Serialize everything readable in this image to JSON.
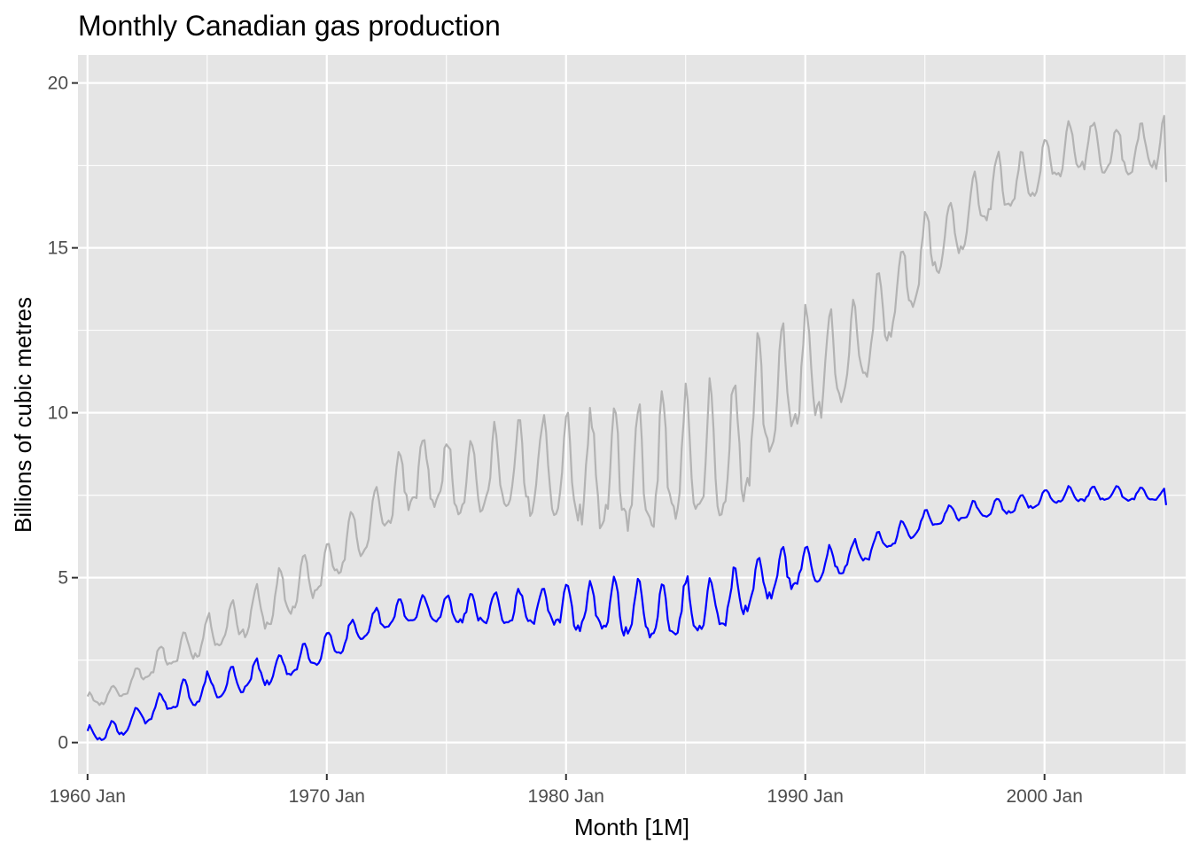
{
  "chart_data": {
    "type": "line",
    "title": "Monthly Canadian gas production",
    "xlabel": "Month [1M]",
    "ylabel": "Billions of cubic metres",
    "xlim": [
      1959.6,
      2005.9
    ],
    "ylim": [
      -0.95,
      20.85
    ],
    "x_major_ticks": [
      1960,
      1970,
      1980,
      1990,
      2000
    ],
    "x_tick_labels": [
      "1960 Jan",
      "1970 Jan",
      "1980 Jan",
      "1990 Jan",
      "2000 Jan"
    ],
    "x_minor_ticks": [
      1965,
      1975,
      1985,
      1995,
      2005
    ],
    "y_major_ticks": [
      0,
      5,
      10,
      15,
      20
    ],
    "y_tick_labels": [
      "0",
      "5",
      "10",
      "15",
      "20"
    ],
    "y_minor_ticks": [
      2.5,
      7.5,
      12.5,
      17.5
    ],
    "grid": true,
    "legend": "none",
    "x_start": "1960 Jan",
    "x_end": "2005 Feb",
    "series": [
      {
        "color": "#b3b3b3",
        "pattern": "seasonal",
        "trend_knots": [
          [
            1960.0,
            1.3
          ],
          [
            1961.0,
            1.4
          ],
          [
            1962.0,
            1.9
          ],
          [
            1963.0,
            2.5
          ],
          [
            1964.0,
            2.8
          ],
          [
            1965.0,
            3.2
          ],
          [
            1966.0,
            3.6
          ],
          [
            1967.0,
            3.9
          ],
          [
            1968.0,
            4.3
          ],
          [
            1969.0,
            4.8
          ],
          [
            1970.0,
            5.3
          ],
          [
            1971.0,
            6.1
          ],
          [
            1972.0,
            6.7
          ],
          [
            1973.0,
            7.7
          ],
          [
            1974.0,
            8.1
          ],
          [
            1975.0,
            8.0
          ],
          [
            1976.0,
            7.9
          ],
          [
            1977.0,
            8.1
          ],
          [
            1978.0,
            8.1
          ],
          [
            1979.0,
            8.2
          ],
          [
            1980.0,
            8.1
          ],
          [
            1981.0,
            8.0
          ],
          [
            1982.0,
            8.0
          ],
          [
            1983.0,
            7.9
          ],
          [
            1984.0,
            8.1
          ],
          [
            1985.0,
            8.4
          ],
          [
            1986.0,
            8.4
          ],
          [
            1987.0,
            8.6
          ],
          [
            1988.0,
            9.9
          ],
          [
            1989.0,
            10.6
          ],
          [
            1990.0,
            11.1
          ],
          [
            1991.0,
            11.2
          ],
          [
            1992.0,
            11.7
          ],
          [
            1993.0,
            12.7
          ],
          [
            1994.0,
            13.6
          ],
          [
            1995.0,
            14.9
          ],
          [
            1996.0,
            15.3
          ],
          [
            1997.0,
            16.2
          ],
          [
            1998.0,
            16.8
          ],
          [
            1999.0,
            16.9
          ],
          [
            2000.0,
            17.4
          ],
          [
            2001.0,
            18.0
          ],
          [
            2002.0,
            18.0
          ],
          [
            2003.0,
            17.8
          ],
          [
            2004.0,
            17.9
          ],
          [
            2005.0,
            18.1
          ],
          [
            2005.1,
            18.2
          ]
        ],
        "amp_knots": [
          [
            1960.0,
            0.2
          ],
          [
            1962.0,
            0.3
          ],
          [
            1965.0,
            0.5
          ],
          [
            1968.0,
            0.7
          ],
          [
            1970.0,
            0.7
          ],
          [
            1973.0,
            0.9
          ],
          [
            1976.0,
            1.1
          ],
          [
            1979.0,
            1.4
          ],
          [
            1982.0,
            1.7
          ],
          [
            1985.0,
            2.0
          ],
          [
            1987.0,
            2.0
          ],
          [
            1989.0,
            1.7
          ],
          [
            1991.0,
            1.4
          ],
          [
            1994.0,
            1.1
          ],
          [
            1997.0,
            0.9
          ],
          [
            2000.0,
            0.7
          ],
          [
            2005.1,
            0.7
          ]
        ],
        "endpoints": [
          [
            1960.0,
            1.4
          ],
          [
            2005.08,
            17.0
          ]
        ],
        "seed": 11
      },
      {
        "color": "#0000ff",
        "pattern": "seasonal",
        "trend_knots": [
          [
            1960.0,
            0.25
          ],
          [
            1961.0,
            0.3
          ],
          [
            1962.0,
            0.7
          ],
          [
            1963.0,
            1.1
          ],
          [
            1964.0,
            1.4
          ],
          [
            1965.0,
            1.6
          ],
          [
            1966.0,
            1.8
          ],
          [
            1967.0,
            2.0
          ],
          [
            1968.0,
            2.2
          ],
          [
            1969.0,
            2.5
          ],
          [
            1970.0,
            2.9
          ],
          [
            1971.0,
            3.2
          ],
          [
            1972.0,
            3.6
          ],
          [
            1973.0,
            3.9
          ],
          [
            1974.0,
            4.0
          ],
          [
            1975.0,
            4.0
          ],
          [
            1976.0,
            4.0
          ],
          [
            1977.0,
            4.0
          ],
          [
            1978.0,
            4.0
          ],
          [
            1979.0,
            4.1
          ],
          [
            1980.0,
            4.0
          ],
          [
            1981.0,
            4.0
          ],
          [
            1982.0,
            4.0
          ],
          [
            1983.0,
            3.9
          ],
          [
            1984.0,
            3.9
          ],
          [
            1985.0,
            4.0
          ],
          [
            1986.0,
            4.1
          ],
          [
            1987.0,
            4.3
          ],
          [
            1988.0,
            4.8
          ],
          [
            1989.0,
            5.1
          ],
          [
            1990.0,
            5.3
          ],
          [
            1991.0,
            5.4
          ],
          [
            1992.0,
            5.6
          ],
          [
            1993.0,
            6.0
          ],
          [
            1994.0,
            6.3
          ],
          [
            1995.0,
            6.7
          ],
          [
            1996.0,
            6.9
          ],
          [
            1997.0,
            7.0
          ],
          [
            1998.0,
            7.1
          ],
          [
            1999.0,
            7.2
          ],
          [
            2000.0,
            7.4
          ],
          [
            2001.0,
            7.5
          ],
          [
            2002.0,
            7.5
          ],
          [
            2003.0,
            7.5
          ],
          [
            2004.0,
            7.5
          ],
          [
            2005.0,
            7.5
          ],
          [
            2005.1,
            7.5
          ]
        ],
        "amp_knots": [
          [
            1960.0,
            0.2
          ],
          [
            1962.0,
            0.3
          ],
          [
            1965.0,
            0.4
          ],
          [
            1968.0,
            0.4
          ],
          [
            1970.0,
            0.4
          ],
          [
            1973.0,
            0.35
          ],
          [
            1976.0,
            0.4
          ],
          [
            1979.0,
            0.55
          ],
          [
            1982.0,
            0.75
          ],
          [
            1985.0,
            0.8
          ],
          [
            1987.0,
            0.75
          ],
          [
            1989.0,
            0.6
          ],
          [
            1991.0,
            0.45
          ],
          [
            1994.0,
            0.3
          ],
          [
            1997.0,
            0.25
          ],
          [
            2000.0,
            0.2
          ],
          [
            2005.1,
            0.2
          ]
        ],
        "endpoints": [
          [
            1960.0,
            0.35
          ],
          [
            2005.08,
            7.2
          ]
        ],
        "seed": 29
      }
    ]
  }
}
